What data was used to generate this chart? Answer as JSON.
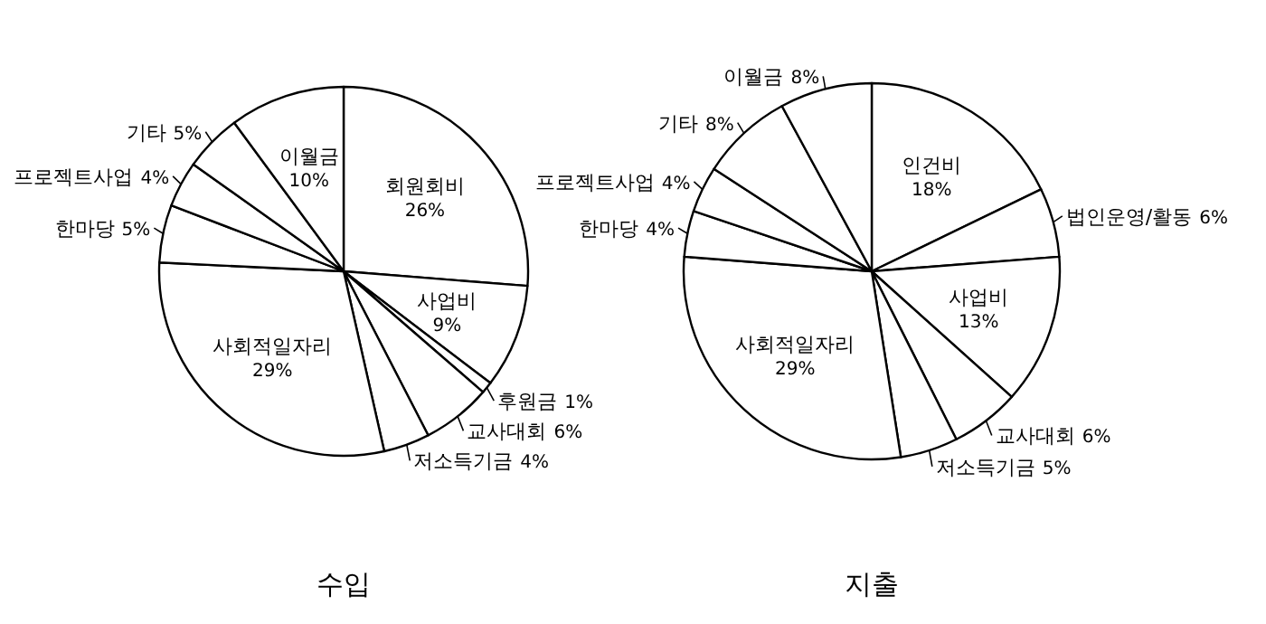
{
  "chart_data": [
    {
      "type": "pie",
      "title": "수입",
      "categories": [
        "회원회비",
        "사업비",
        "후원금",
        "교사대회",
        "저소득기금",
        "사회적일자리",
        "한마당",
        "프로젝트사업",
        "기타",
        "이월금"
      ],
      "values": [
        26,
        9,
        1,
        6,
        4,
        29,
        5,
        4,
        5,
        10
      ],
      "value_labels": [
        "26%",
        "9%",
        "1%",
        "6%",
        "4%",
        "29%",
        "5%",
        "4%",
        "5%",
        "10%"
      ],
      "color": "#ffffff"
    },
    {
      "type": "pie",
      "title": "지출",
      "categories": [
        "인건비",
        "법인운영/활동",
        "사업비",
        "교사대회",
        "저소득기금",
        "사회적일자리",
        "한마당",
        "프로젝트사업",
        "기타",
        "이월금"
      ],
      "values": [
        18,
        6,
        13,
        6,
        5,
        29,
        4,
        4,
        8,
        8
      ],
      "value_labels": [
        "18%",
        "6%",
        "13%",
        "6%",
        "5%",
        "29%",
        "4%",
        "4%",
        "8%",
        "8%"
      ],
      "color": "#ffffff"
    }
  ]
}
